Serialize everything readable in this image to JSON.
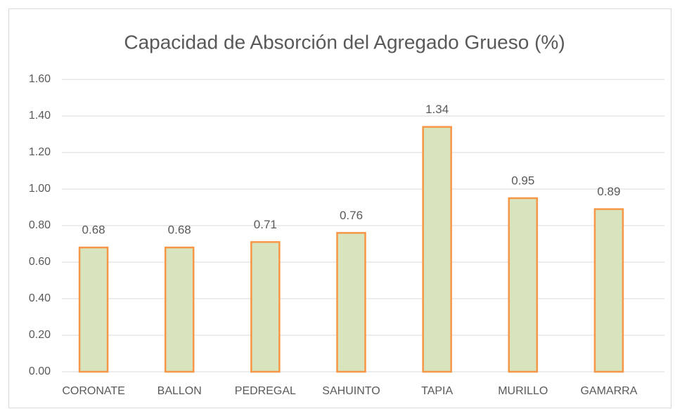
{
  "chart_data": {
    "type": "bar",
    "title": "Capacidad de Absorción del Agregado Grueso (%)",
    "categories": [
      "CORONATE",
      "BALLON",
      "PEDREGAL",
      "SAHUINTO",
      "TAPIA",
      "MURILLO",
      "GAMARRA"
    ],
    "values": [
      0.68,
      0.68,
      0.71,
      0.76,
      1.34,
      0.95,
      0.89
    ],
    "color": "#d7e4bd",
    "edge_color": "#f79646",
    "ylim": [
      0,
      1.6
    ],
    "yticks": [
      {
        "value": 0,
        "label": "0.00"
      },
      {
        "value": 0.2,
        "label": "0.20"
      },
      {
        "value": 0.4,
        "label": "0.40"
      },
      {
        "value": 0.6,
        "label": "0.60"
      },
      {
        "value": 0.8,
        "label": "0.80"
      },
      {
        "value": 1.0,
        "label": "1.00"
      },
      {
        "value": 1.2,
        "label": "1.20"
      },
      {
        "value": 1.4,
        "label": "1.40"
      },
      {
        "value": 1.6,
        "label": "1.60"
      }
    ],
    "grid": true
  }
}
